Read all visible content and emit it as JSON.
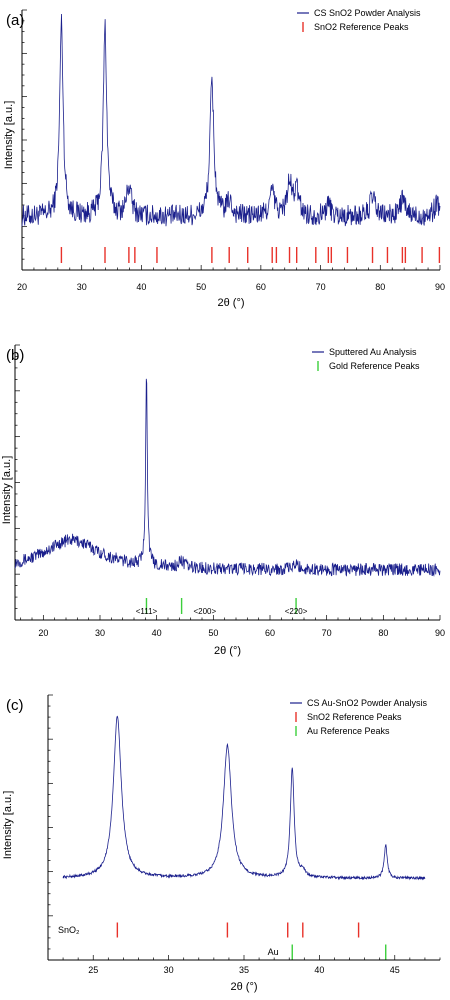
{
  "colors": {
    "trace": "#1a1f8c",
    "sno2_ref": "#e8322a",
    "au_ref": "#3ccf3c",
    "axis": "#000000"
  },
  "chart_data": [
    {
      "id": "a",
      "type": "line",
      "panel_label": "(a)",
      "xlabel": "2θ (°)",
      "ylabel": "Intensity [a.u.]",
      "xlim": [
        20,
        90
      ],
      "xticks": [
        20,
        30,
        40,
        50,
        60,
        70,
        80,
        90
      ],
      "xtick_labels": [
        "20",
        "30",
        "40",
        "50",
        "60",
        "70",
        "80",
        "90"
      ],
      "legend_placement": "top-right",
      "series": [
        {
          "name": "CS SnO2 Powder Analysis",
          "kind": "trace",
          "color": "#1a1f8c",
          "baseline": 0.17,
          "noise": 0.045,
          "peaks": [
            [
              26.6,
              0.8,
              0.35
            ],
            [
              33.9,
              0.78,
              0.35
            ],
            [
              37.9,
              0.12,
              0.5
            ],
            [
              51.8,
              0.55,
              0.4
            ],
            [
              54.7,
              0.06,
              0.5
            ],
            [
              61.9,
              0.1,
              0.5
            ],
            [
              64.8,
              0.13,
              0.5
            ],
            [
              66.0,
              0.1,
              0.5
            ],
            [
              71.3,
              0.05,
              0.5
            ],
            [
              78.7,
              0.08,
              0.5
            ],
            [
              83.7,
              0.07,
              0.5
            ],
            [
              89.5,
              0.06,
              0.5
            ]
          ]
        },
        {
          "name": "SnO2 Reference Peaks",
          "kind": "ticks",
          "color": "#e8322a",
          "row": 0,
          "x": [
            26.6,
            33.9,
            37.9,
            38.9,
            42.6,
            51.8,
            54.7,
            57.8,
            61.9,
            62.6,
            64.8,
            66.0,
            69.2,
            71.3,
            71.8,
            74.5,
            78.7,
            81.2,
            83.7,
            84.2,
            87.0,
            89.9
          ]
        }
      ]
    },
    {
      "id": "b",
      "type": "line",
      "panel_label": "(b)",
      "xlabel": "2θ (°)",
      "ylabel": "Intensity [a.u.]",
      "xlim": [
        15,
        90
      ],
      "xticks": [
        20,
        30,
        40,
        50,
        60,
        70,
        80,
        90
      ],
      "xtick_labels": [
        "20",
        "30",
        "40",
        "50",
        "60",
        "70",
        "80",
        "90"
      ],
      "legend_placement": "top-right",
      "annotations": [
        {
          "x": 38.2,
          "text": "<111>"
        },
        {
          "x": 48.5,
          "text": "<200>"
        },
        {
          "x": 64.6,
          "text": "<220>"
        }
      ],
      "series": [
        {
          "name": "Sputtered Au Analysis",
          "kind": "trace",
          "color": "#1a1f8c",
          "baseline": 0.12,
          "noise": 0.025,
          "peaks": [
            [
              25.0,
              0.12,
              6.0
            ],
            [
              38.2,
              0.78,
              0.18
            ],
            [
              44.4,
              0.03,
              0.5
            ],
            [
              64.6,
              0.02,
              0.6
            ]
          ]
        },
        {
          "name": "Gold Reference Peaks",
          "kind": "ticks",
          "color": "#3ccf3c",
          "row": 0,
          "x": [
            38.2,
            44.4,
            64.6
          ]
        }
      ]
    },
    {
      "id": "c",
      "type": "line",
      "panel_label": "(c)",
      "xlabel": "2θ (°)",
      "ylabel": "Intensity [a.u.]",
      "xlim": [
        22,
        48
      ],
      "xticks": [
        25,
        30,
        35,
        40,
        45
      ],
      "xtick_labels": [
        "25",
        "30",
        "35",
        "40",
        "45"
      ],
      "legend_placement": "top-right",
      "row_labels": [
        "SnO₂",
        "Au"
      ],
      "series": [
        {
          "name": "CS Au-SnO2 Powder Analysis",
          "kind": "trace",
          "color": "#1a1f8c",
          "baseline": 0.15,
          "noise": 0.006,
          "xrange": [
            23.0,
            47.0
          ],
          "peaks": [
            [
              26.6,
              0.73,
              0.32
            ],
            [
              33.9,
              0.6,
              0.32
            ],
            [
              38.2,
              0.5,
              0.15
            ],
            [
              38.9,
              0.03,
              0.2
            ],
            [
              44.4,
              0.15,
              0.12
            ]
          ]
        },
        {
          "name": "SnO2 Reference Peaks",
          "kind": "ticks",
          "color": "#e8322a",
          "row": 0,
          "x": [
            26.6,
            33.9,
            37.9,
            38.9,
            42.6
          ]
        },
        {
          "name": "Au Reference Peaks",
          "kind": "ticks",
          "color": "#3ccf3c",
          "row": 1,
          "x": [
            38.2,
            44.4
          ]
        }
      ]
    }
  ]
}
